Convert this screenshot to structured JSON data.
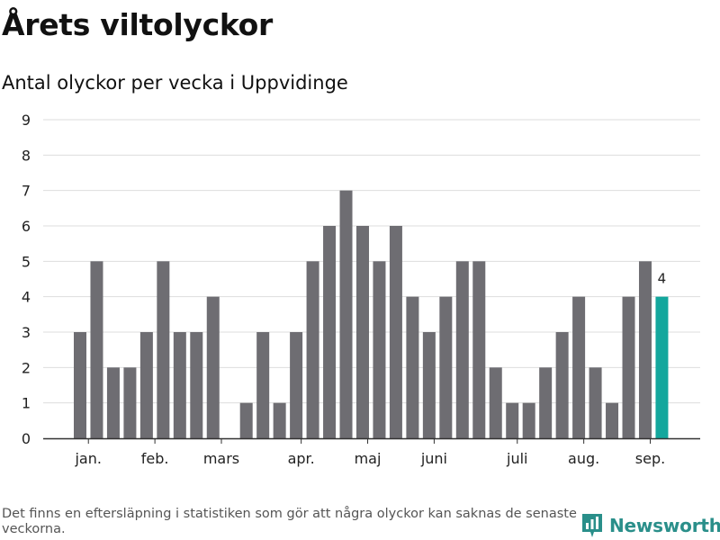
{
  "header": {
    "title": "Årets viltolyckor",
    "subtitle": "Antal olyckor per vecka i Uppvidinge"
  },
  "footer": {
    "note": "Det finns en eftersläpning i statistiken som gör att några olyckor kan saknas de senaste veckorna.",
    "brand": "Newsworthy"
  },
  "colors": {
    "bar": "#6e6d72",
    "highlight": "#13a79d",
    "grid": "#dddddd",
    "axis": "#333333",
    "brand": "#2a8f8a"
  },
  "chart_data": {
    "type": "bar",
    "title": "Årets viltolyckor",
    "subtitle": "Antal olyckor per vecka i Uppvidinge",
    "xlabel": "",
    "ylabel": "",
    "ylim": [
      0,
      9
    ],
    "yticks": [
      0,
      1,
      2,
      3,
      4,
      5,
      6,
      7,
      8,
      9
    ],
    "grid": true,
    "legend": "none",
    "weeks": [
      1,
      2,
      3,
      4,
      5,
      6,
      7,
      8,
      9,
      10,
      11,
      12,
      13,
      14,
      15,
      16,
      17,
      18,
      19,
      20,
      21,
      22,
      23,
      24,
      25,
      26,
      27,
      28,
      29,
      30,
      31,
      32,
      33,
      34,
      35,
      36,
      37
    ],
    "values": [
      3,
      5,
      2,
      2,
      3,
      5,
      3,
      3,
      4,
      0,
      1,
      3,
      1,
      3,
      5,
      6,
      7,
      6,
      5,
      6,
      4,
      3,
      4,
      5,
      5,
      2,
      1,
      1,
      2,
      3,
      4,
      2,
      1,
      4,
      5,
      4,
      0
    ],
    "highlight_week": 36,
    "highlight_label": "4",
    "month_labels": [
      {
        "label": "jan.",
        "week": 1.5
      },
      {
        "label": "feb.",
        "week": 5.5
      },
      {
        "label": "mars",
        "week": 9.5
      },
      {
        "label": "apr.",
        "week": 14.3
      },
      {
        "label": "maj",
        "week": 18.3
      },
      {
        "label": "juni",
        "week": 22.3
      },
      {
        "label": "juli",
        "week": 27.3
      },
      {
        "label": "aug.",
        "week": 31.3
      },
      {
        "label": "sep.",
        "week": 35.3
      }
    ]
  }
}
